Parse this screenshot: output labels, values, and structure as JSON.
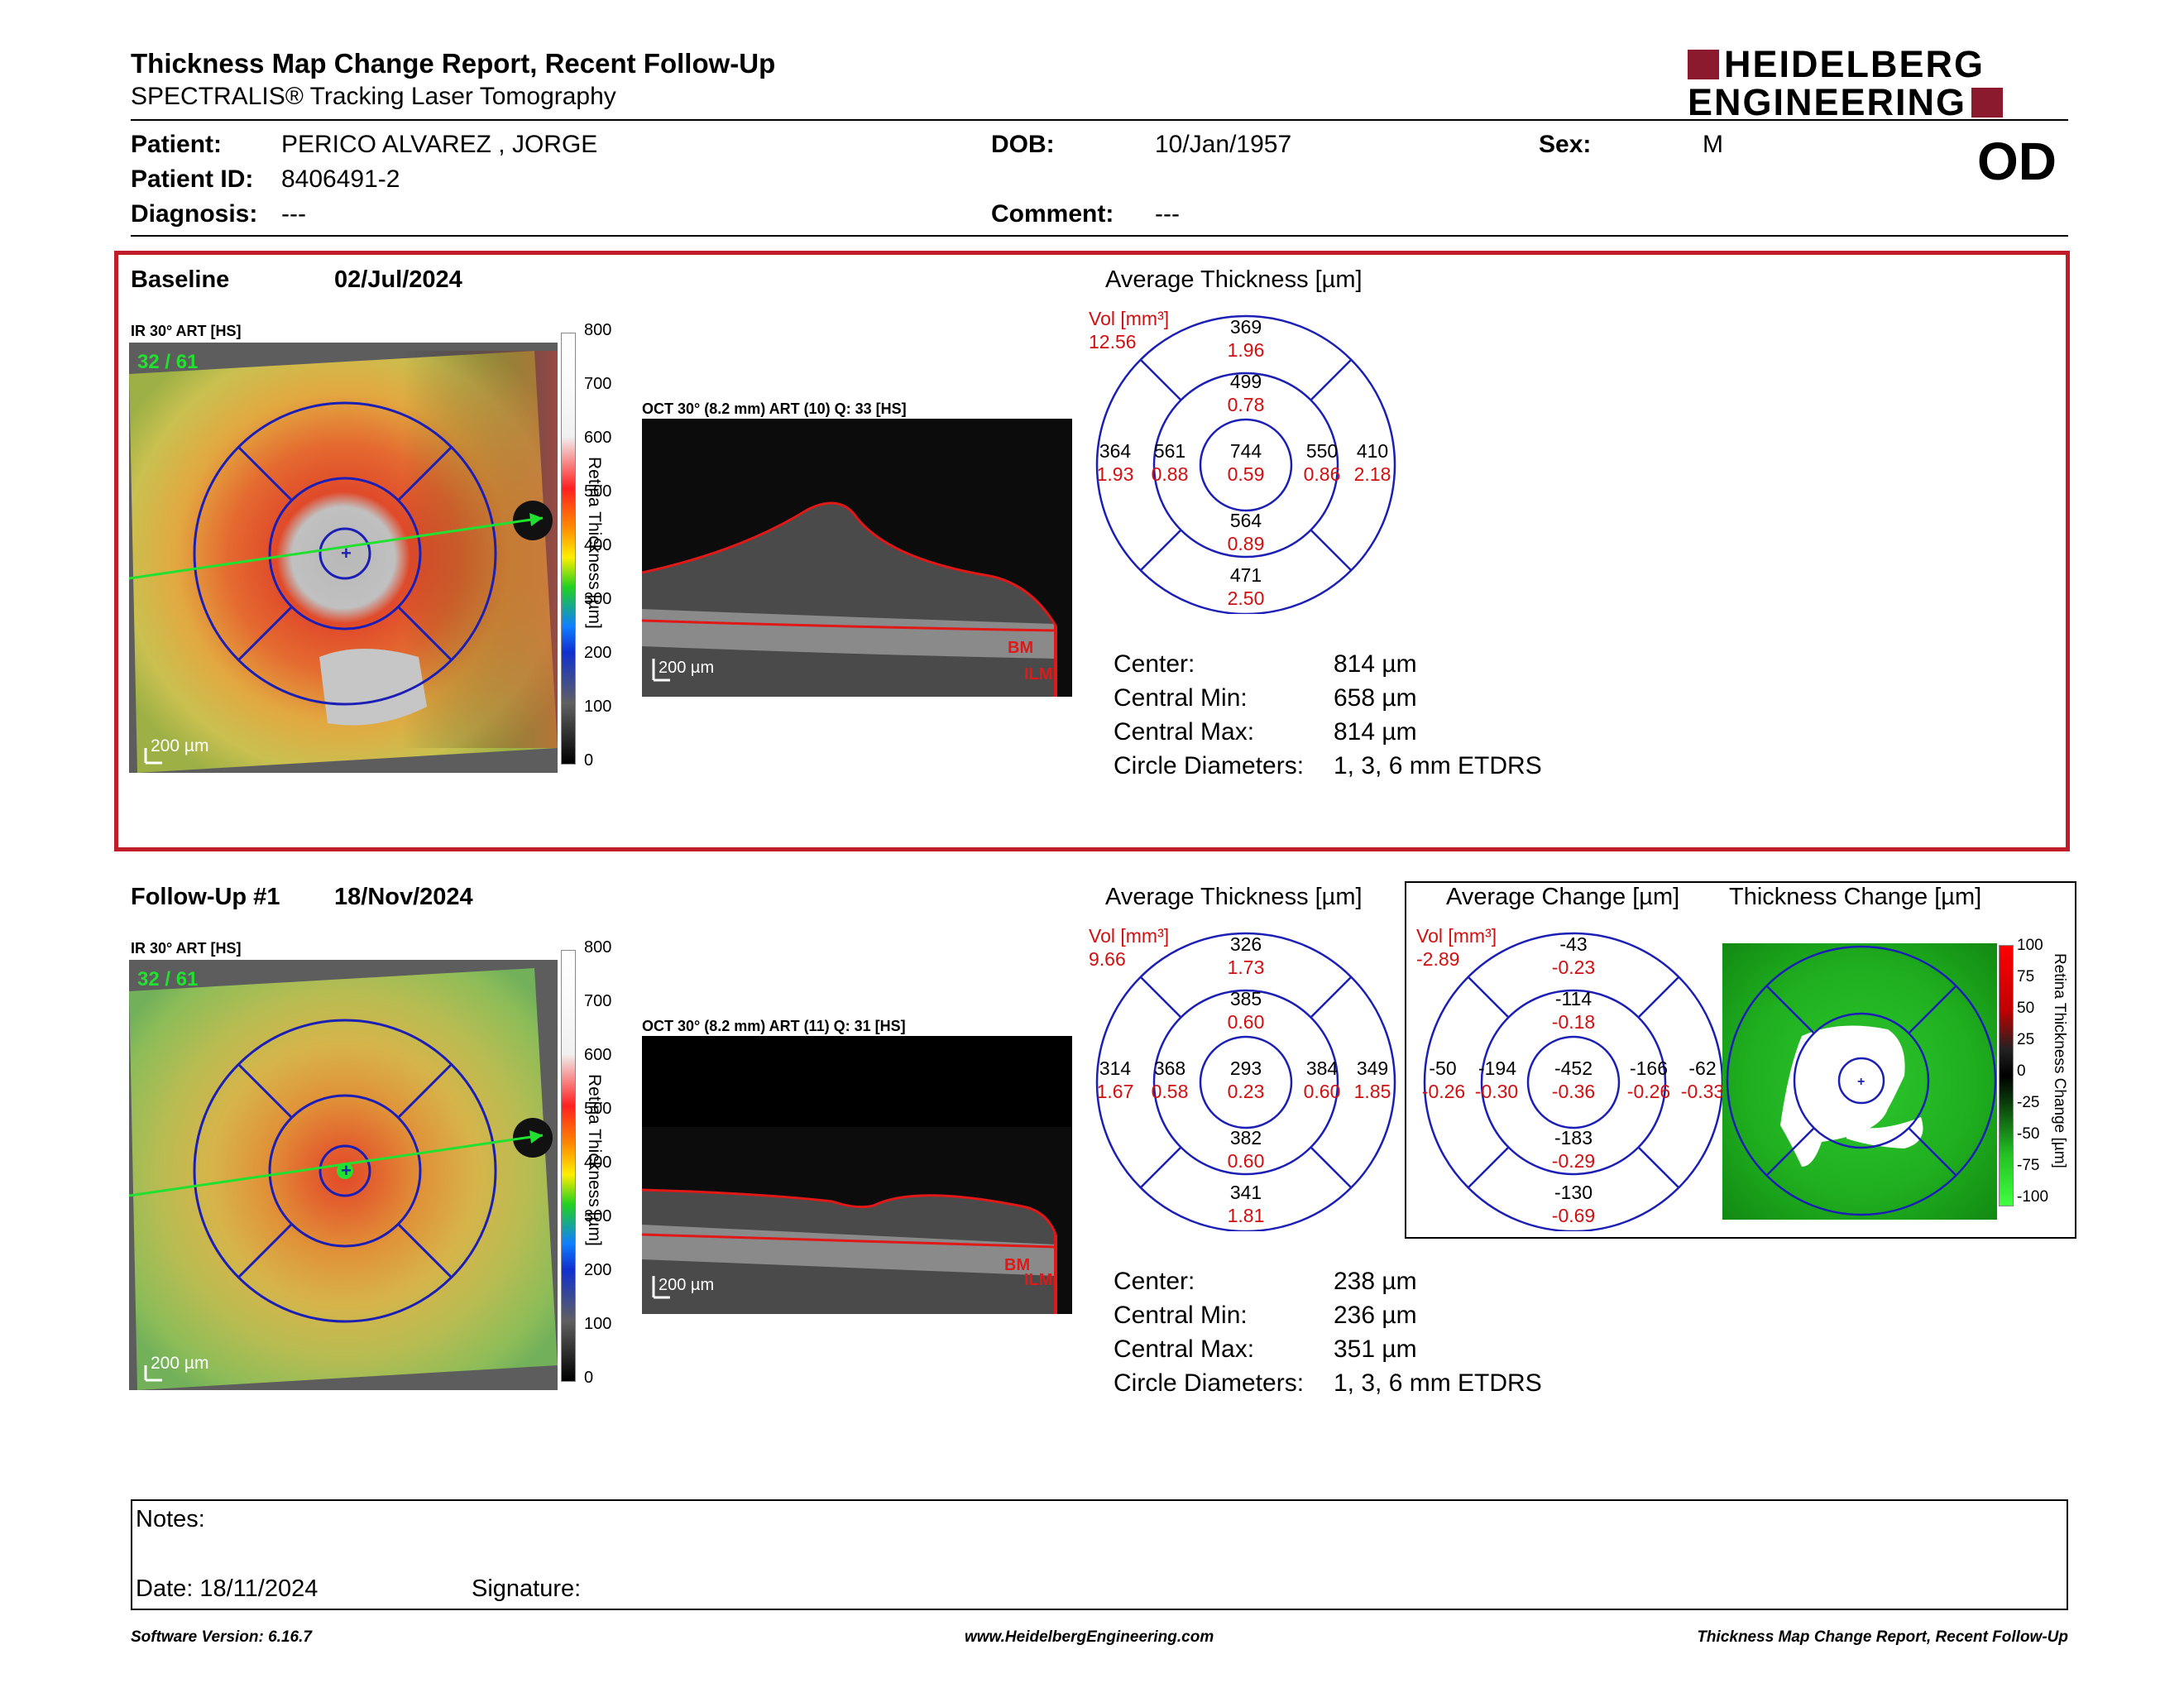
{
  "header": {
    "title": "Thickness Map Change Report, Recent Follow-Up",
    "subtitle": "SPECTRALIS® Tracking Laser Tomography",
    "logo_line1": "HEIDELBERG",
    "logo_line2": "ENGINEERING"
  },
  "patient": {
    "patient_label": "Patient:",
    "patient_name": "PERICO ALVAREZ , JORGE",
    "id_label": "Patient ID:",
    "id_value": "8406491-2",
    "diagnosis_label": "Diagnosis:",
    "diagnosis_value": "---",
    "dob_label": "DOB:",
    "dob_value": "10/Jan/1957",
    "comment_label": "Comment:",
    "comment_value": "---",
    "sex_label": "Sex:",
    "sex_value": "M",
    "eye": "OD"
  },
  "baseline": {
    "label": "Baseline",
    "date": "02/Jul/2024",
    "slo_label": "IR 30° ART [HS]",
    "slo_counter": "32 / 61",
    "scale_bar": "200 µm",
    "oct_label": "OCT 30° (8.2 mm) ART (10) Q: 33 [HS]",
    "oct_scale": "200 µm",
    "bm": "BM",
    "ilm": "ILM",
    "colorbar_title": "Retina Thickness [µm]",
    "colorbar_ticks": [
      "800",
      "700",
      "600",
      "500",
      "400",
      "300",
      "200",
      "100",
      "0"
    ],
    "chart_title": "Average Thickness [µm]",
    "vol_label": "Vol [mm³]",
    "vol_value": "12.56",
    "sectors": {
      "outer_top": {
        "t": "369",
        "v": "1.96"
      },
      "inner_top": {
        "t": "499",
        "v": "0.78"
      },
      "outer_left": {
        "t": "364",
        "v": "1.93"
      },
      "inner_left": {
        "t": "561",
        "v": "0.88"
      },
      "center": {
        "t": "744",
        "v": "0.59"
      },
      "inner_right": {
        "t": "550",
        "v": "0.86"
      },
      "outer_right": {
        "t": "410",
        "v": "2.18"
      },
      "inner_bottom": {
        "t": "564",
        "v": "0.89"
      },
      "outer_bottom": {
        "t": "471",
        "v": "2.50"
      }
    },
    "stats": [
      {
        "label": "Center:",
        "value": "814 µm"
      },
      {
        "label": "Central Min:",
        "value": "658 µm"
      },
      {
        "label": "Central Max:",
        "value": "814 µm"
      },
      {
        "label": "Circle Diameters:",
        "value": "1, 3, 6 mm ETDRS"
      }
    ]
  },
  "followup": {
    "label": "Follow-Up #1",
    "date": "18/Nov/2024",
    "slo_label": "IR 30° ART [HS]",
    "slo_counter": "32 / 61",
    "scale_bar": "200 µm",
    "oct_label": "OCT 30° (8.2 mm) ART (11) Q: 31 [HS]",
    "oct_scale": "200 µm",
    "bm": "BM",
    "ilm": "ILM",
    "colorbar_title": "Retina Thickness [µm]",
    "colorbar_ticks": [
      "800",
      "700",
      "600",
      "500",
      "400",
      "300",
      "200",
      "100",
      "0"
    ],
    "chart_title": "Average Thickness [µm]",
    "vol_label": "Vol [mm³]",
    "vol_value": "9.66",
    "sectors": {
      "outer_top": {
        "t": "326",
        "v": "1.73"
      },
      "inner_top": {
        "t": "385",
        "v": "0.60"
      },
      "outer_left": {
        "t": "314",
        "v": "1.67"
      },
      "inner_left": {
        "t": "368",
        "v": "0.58"
      },
      "center": {
        "t": "293",
        "v": "0.23"
      },
      "inner_right": {
        "t": "384",
        "v": "0.60"
      },
      "outer_right": {
        "t": "349",
        "v": "1.85"
      },
      "inner_bottom": {
        "t": "382",
        "v": "0.60"
      },
      "outer_bottom": {
        "t": "341",
        "v": "1.81"
      }
    },
    "stats": [
      {
        "label": "Center:",
        "value": "238 µm"
      },
      {
        "label": "Central Min:",
        "value": "236 µm"
      },
      {
        "label": "Central Max:",
        "value": "351 µm"
      },
      {
        "label": "Circle Diameters:",
        "value": "1, 3, 6 mm ETDRS"
      }
    ]
  },
  "change": {
    "chart_title": "Average Change [µm]",
    "map_title": "Thickness Change [µm]",
    "vol_label": "Vol [mm³]",
    "vol_value": "-2.89",
    "colorbar_title": "Retina Thickness Change [µm]",
    "colorbar_ticks": [
      "100",
      "75",
      "50",
      "25",
      "0",
      "-25",
      "-50",
      "-75",
      "-100"
    ],
    "sectors": {
      "outer_top": {
        "t": "-43",
        "v": "-0.23"
      },
      "inner_top": {
        "t": "-114",
        "v": "-0.18"
      },
      "outer_left": {
        "t": "-50",
        "v": "-0.26"
      },
      "inner_left": {
        "t": "-194",
        "v": "-0.30"
      },
      "center": {
        "t": "-452",
        "v": "-0.36"
      },
      "inner_right": {
        "t": "-166",
        "v": "-0.26"
      },
      "outer_right": {
        "t": "-62",
        "v": "-0.33"
      },
      "inner_bottom": {
        "t": "-183",
        "v": "-0.29"
      },
      "outer_bottom": {
        "t": "-130",
        "v": "-0.69"
      }
    }
  },
  "notes": {
    "notes_label": "Notes:",
    "date_label": "Date: 18/11/2024",
    "signature_label": "Signature:"
  },
  "footer": {
    "version": "Software Version: 6.16.7",
    "website": "www.HeidelbergEngineering.com",
    "report_name": "Thickness Map Change Report, Recent Follow-Up"
  },
  "colors": {
    "frame_red": "#c01c2a",
    "grid_blue": "#1b1fb5",
    "value_red": "#d01010",
    "logo_red": "#8b1a2e"
  }
}
